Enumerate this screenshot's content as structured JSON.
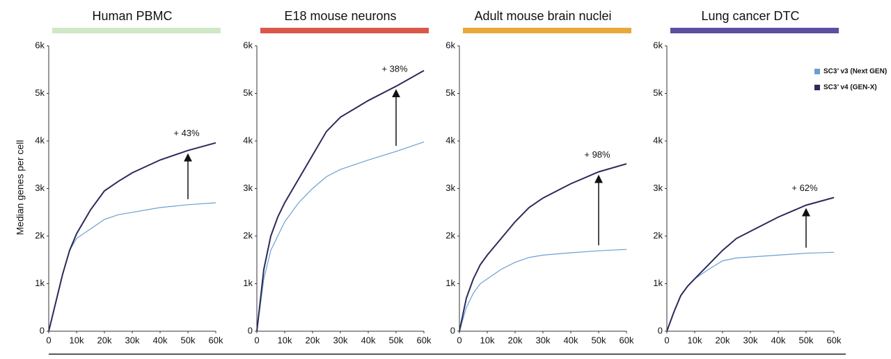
{
  "chart_data": [
    {
      "type": "line",
      "title": "Human PBMC",
      "title_color": "#cfe8c6",
      "ylabel": "Median genes per cell",
      "annotation": "+ 43%",
      "x": [
        0,
        2500,
        5000,
        7500,
        10000,
        15000,
        20000,
        25000,
        30000,
        40000,
        50000,
        60000
      ],
      "series": [
        {
          "color": "#6a9fd0",
          "values": [
            0,
            600,
            1200,
            1700,
            1950,
            2150,
            2350,
            2450,
            2500,
            2600,
            2660,
            2700
          ]
        },
        {
          "color": "#2b2a5a",
          "values": [
            0,
            600,
            1200,
            1700,
            2050,
            2550,
            2950,
            3150,
            3330,
            3600,
            3800,
            3960
          ]
        }
      ],
      "xlim": [
        0,
        60000
      ],
      "ylim": [
        0,
        6000
      ],
      "xticks": [
        0,
        {
          "value": 10000,
          "label": "10k"
        },
        {
          "value": 20000,
          "label": "20k"
        },
        {
          "value": 30000,
          "label": "30k"
        },
        {
          "value": 40000,
          "label": "40k"
        },
        {
          "value": 50000,
          "label": "50k"
        },
        {
          "value": 60000,
          "label": "60k"
        }
      ],
      "yticks": [
        0,
        {
          "value": 1000,
          "label": "1k"
        },
        {
          "value": 2000,
          "label": "2k"
        },
        {
          "value": 3000,
          "label": "3k"
        },
        {
          "value": 4000,
          "label": "4k"
        },
        {
          "value": 5000,
          "label": "5k"
        },
        {
          "value": 6000,
          "label": "6k"
        }
      ]
    },
    {
      "type": "line",
      "title": "E18 mouse neurons",
      "title_color": "#d9584a",
      "annotation": "+ 38%",
      "x": [
        0,
        2500,
        5000,
        7500,
        10000,
        15000,
        20000,
        25000,
        30000,
        40000,
        50000,
        60000
      ],
      "series": [
        {
          "color": "#6a9fd0",
          "values": [
            0,
            1100,
            1700,
            2000,
            2300,
            2700,
            3000,
            3250,
            3400,
            3600,
            3780,
            3980
          ]
        },
        {
          "color": "#2b2a5a",
          "values": [
            0,
            1300,
            2000,
            2400,
            2700,
            3200,
            3700,
            4200,
            4500,
            4850,
            5150,
            5480
          ]
        }
      ],
      "xlim": [
        0,
        60000
      ],
      "ylim": [
        0,
        6000
      ],
      "xticks": [
        0,
        {
          "value": 10000,
          "label": "10k"
        },
        {
          "value": 20000,
          "label": "20k"
        },
        {
          "value": 30000,
          "label": "30k"
        },
        {
          "value": 40000,
          "label": "40k"
        },
        {
          "value": 50000,
          "label": "50k"
        },
        {
          "value": 60000,
          "label": "60k"
        }
      ],
      "yticks": [
        0,
        {
          "value": 1000,
          "label": "1k"
        },
        {
          "value": 2000,
          "label": "2k"
        },
        {
          "value": 3000,
          "label": "3k"
        },
        {
          "value": 4000,
          "label": "4k"
        },
        {
          "value": 5000,
          "label": "5k"
        },
        {
          "value": 6000,
          "label": "6k"
        }
      ]
    },
    {
      "type": "line",
      "title": "Adult mouse brain nuclei",
      "title_color": "#e8a93a",
      "annotation": "+ 98%",
      "x": [
        0,
        2500,
        5000,
        7500,
        10000,
        15000,
        20000,
        25000,
        30000,
        40000,
        50000,
        60000
      ],
      "series": [
        {
          "color": "#6a9fd0",
          "values": [
            0,
            500,
            800,
            1000,
            1100,
            1300,
            1450,
            1550,
            1600,
            1650,
            1690,
            1720
          ]
        },
        {
          "color": "#2b2a5a",
          "values": [
            0,
            700,
            1100,
            1400,
            1600,
            1950,
            2300,
            2600,
            2800,
            3100,
            3350,
            3520
          ]
        }
      ],
      "xlim": [
        0,
        60000
      ],
      "ylim": [
        0,
        6000
      ],
      "xticks": [
        0,
        {
          "value": 10000,
          "label": "10k"
        },
        {
          "value": 20000,
          "label": "20k"
        },
        {
          "value": 30000,
          "label": "30k"
        },
        {
          "value": 40000,
          "label": "40k"
        },
        {
          "value": 50000,
          "label": "50k"
        },
        {
          "value": 60000,
          "label": "60k"
        }
      ],
      "yticks": [
        0,
        {
          "value": 1000,
          "label": "1k"
        },
        {
          "value": 2000,
          "label": "2k"
        },
        {
          "value": 3000,
          "label": "3k"
        },
        {
          "value": 4000,
          "label": "4k"
        },
        {
          "value": 5000,
          "label": "5k"
        },
        {
          "value": 6000,
          "label": "6k"
        }
      ]
    },
    {
      "type": "line",
      "title": "Lung cancer DTC",
      "title_color": "#5a4fa0",
      "annotation": "+ 62%",
      "legend": "top-right",
      "x": [
        0,
        2500,
        5000,
        7500,
        10000,
        15000,
        20000,
        25000,
        30000,
        40000,
        50000,
        60000
      ],
      "series": [
        {
          "name": "SC3’ v3 (Next GEN)",
          "color": "#6a9fd0",
          "values": [
            0,
            400,
            750,
            950,
            1100,
            1300,
            1480,
            1540,
            1560,
            1600,
            1640,
            1660
          ]
        },
        {
          "name": "SC3’ v4 (GEN-X)",
          "color": "#2b2a5a",
          "values": [
            0,
            400,
            750,
            950,
            1100,
            1400,
            1700,
            1950,
            2100,
            2400,
            2650,
            2810
          ]
        }
      ],
      "xlim": [
        0,
        60000
      ],
      "ylim": [
        0,
        6000
      ],
      "xticks": [
        0,
        {
          "value": 10000,
          "label": "10k"
        },
        {
          "value": 20000,
          "label": "20k"
        },
        {
          "value": 30000,
          "label": "30k"
        },
        {
          "value": 40000,
          "label": "40k"
        },
        {
          "value": 50000,
          "label": "50k"
        },
        {
          "value": 60000,
          "label": "60k"
        }
      ],
      "yticks": [
        0,
        {
          "value": 1000,
          "label": "1k"
        },
        {
          "value": 2000,
          "label": "2k"
        },
        {
          "value": 3000,
          "label": "3k"
        },
        {
          "value": 4000,
          "label": "4k"
        },
        {
          "value": 5000,
          "label": "5k"
        },
        {
          "value": 6000,
          "label": "6k"
        }
      ]
    }
  ]
}
